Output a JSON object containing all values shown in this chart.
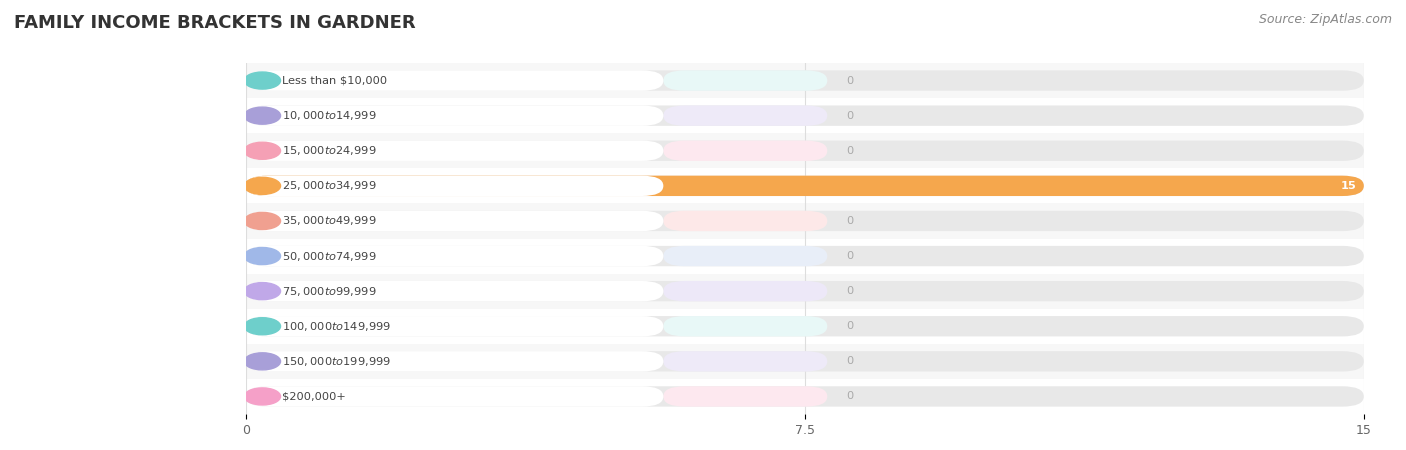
{
  "title": "FAMILY INCOME BRACKETS IN GARDNER",
  "source": "Source: ZipAtlas.com",
  "categories": [
    "Less than $10,000",
    "$10,000 to $14,999",
    "$15,000 to $24,999",
    "$25,000 to $34,999",
    "$35,000 to $49,999",
    "$50,000 to $74,999",
    "$75,000 to $99,999",
    "$100,000 to $149,999",
    "$150,000 to $199,999",
    "$200,000+"
  ],
  "values": [
    0,
    0,
    0,
    15,
    0,
    0,
    0,
    0,
    0,
    0
  ],
  "bar_colors": [
    "#6ecfcb",
    "#a89fd8",
    "#f5a0b5",
    "#f5a74d",
    "#f0a090",
    "#a0b8e8",
    "#c0a8e8",
    "#6ecfcb",
    "#a89fd8",
    "#f5a0c8"
  ],
  "label_bg_colors": [
    "#e8f8f7",
    "#eeeaf8",
    "#fde8ef",
    "#fef0e0",
    "#fde8e8",
    "#e8eef8",
    "#ede8f8",
    "#e8f8f7",
    "#eeeaf8",
    "#fde8ef"
  ],
  "row_alt_colors": [
    "#f7f7f7",
    "#ffffff"
  ],
  "background_color": "#ffffff",
  "xlim": [
    0,
    15
  ],
  "xticks": [
    0,
    7.5,
    15
  ],
  "xtick_labels": [
    "0",
    "7.5",
    "15"
  ],
  "title_fontsize": 13,
  "source_fontsize": 9,
  "bar_height": 0.58,
  "label_bar_width": 0.8,
  "value_color_active": "#ffffff",
  "value_color_zero": "#aaaaaa",
  "grid_color": "#dddddd",
  "text_color": "#444444"
}
